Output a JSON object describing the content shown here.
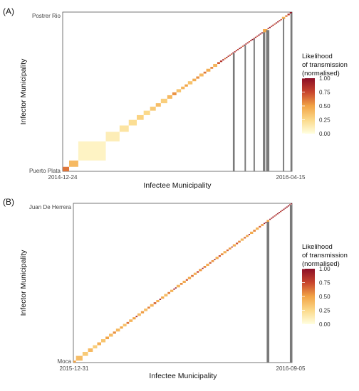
{
  "chart_data": [
    {
      "type": "heatmap",
      "panel_label": "(A)",
      "xlabel": "Infectee Municipality",
      "ylabel": "Infector Municipality",
      "x_start_label": "2014-12-24",
      "x_end_label": "2016-04-15",
      "y_bottom_label": "Puerto Plata",
      "y_top_label": "Postrer Rio",
      "legend_title": [
        "Likelihood",
        "of transmission",
        "(normalised)"
      ],
      "legend_ticks": [
        "1.00",
        "0.75",
        "0.50",
        "0.25",
        "0.00"
      ],
      "value_range": [
        0,
        1
      ],
      "diagonal_cells": [
        {
          "p": 0.0,
          "s": 0.028,
          "v": 0.62
        },
        {
          "p": 0.028,
          "s": 0.04,
          "v": 0.4
        },
        {
          "p": 0.068,
          "s": 0.12,
          "v": 0.08
        },
        {
          "p": 0.188,
          "s": 0.06,
          "v": 0.12
        },
        {
          "p": 0.248,
          "s": 0.04,
          "v": 0.18
        },
        {
          "p": 0.288,
          "s": 0.035,
          "v": 0.22
        },
        {
          "p": 0.323,
          "s": 0.03,
          "v": 0.28
        },
        {
          "p": 0.353,
          "s": 0.028,
          "v": 0.25
        },
        {
          "p": 0.381,
          "s": 0.025,
          "v": 0.32
        },
        {
          "p": 0.406,
          "s": 0.022,
          "v": 0.38
        },
        {
          "p": 0.428,
          "s": 0.028,
          "v": 0.3
        },
        {
          "p": 0.456,
          "s": 0.022,
          "v": 0.4
        },
        {
          "p": 0.478,
          "s": 0.018,
          "v": 0.55
        },
        {
          "p": 0.496,
          "s": 0.02,
          "v": 0.35
        },
        {
          "p": 0.516,
          "s": 0.016,
          "v": 0.42
        },
        {
          "p": 0.532,
          "s": 0.014,
          "v": 0.5
        },
        {
          "p": 0.546,
          "s": 0.02,
          "v": 0.36
        },
        {
          "p": 0.566,
          "s": 0.016,
          "v": 0.46
        },
        {
          "p": 0.582,
          "s": 0.014,
          "v": 0.55
        },
        {
          "p": 0.596,
          "s": 0.018,
          "v": 0.4
        },
        {
          "p": 0.614,
          "s": 0.012,
          "v": 0.62
        },
        {
          "p": 0.626,
          "s": 0.018,
          "v": 0.45
        },
        {
          "p": 0.644,
          "s": 0.012,
          "v": 0.58
        },
        {
          "p": 0.656,
          "s": 0.018,
          "v": 0.42
        },
        {
          "p": 0.674,
          "s": 0.012,
          "v": 0.7
        },
        {
          "p": 0.686,
          "s": 0.01,
          "v": 0.82
        },
        {
          "p": 0.696,
          "s": 0.008,
          "v": 0.92
        },
        {
          "p": 0.704,
          "s": 0.008,
          "v": 0.65
        },
        {
          "p": 0.712,
          "s": 0.007,
          "v": 0.95
        },
        {
          "p": 0.719,
          "s": 0.007,
          "v": 0.8
        },
        {
          "p": 0.726,
          "s": 0.007,
          "v": 0.9
        },
        {
          "p": 0.733,
          "s": 0.007,
          "v": 0.72
        },
        {
          "p": 0.74,
          "s": 0.007,
          "v": 0.98
        },
        {
          "p": 0.747,
          "s": 0.007,
          "v": 0.85
        },
        {
          "p": 0.754,
          "s": 0.007,
          "v": 0.93
        },
        {
          "p": 0.761,
          "s": 0.007,
          "v": 0.78
        },
        {
          "p": 0.768,
          "s": 0.007,
          "v": 0.96
        },
        {
          "p": 0.775,
          "s": 0.007,
          "v": 0.88
        },
        {
          "p": 0.782,
          "s": 0.007,
          "v": 0.7
        },
        {
          "p": 0.789,
          "s": 0.007,
          "v": 0.99
        },
        {
          "p": 0.796,
          "s": 0.007,
          "v": 0.82
        },
        {
          "p": 0.803,
          "s": 0.007,
          "v": 0.94
        },
        {
          "p": 0.81,
          "s": 0.007,
          "v": 0.76
        },
        {
          "p": 0.817,
          "s": 0.007,
          "v": 0.9
        },
        {
          "p": 0.824,
          "s": 0.007,
          "v": 0.97
        },
        {
          "p": 0.831,
          "s": 0.007,
          "v": 0.84
        },
        {
          "p": 0.838,
          "s": 0.007,
          "v": 0.92
        },
        {
          "p": 0.845,
          "s": 0.007,
          "v": 0.75
        },
        {
          "p": 0.852,
          "s": 0.007,
          "v": 0.99
        },
        {
          "p": 0.859,
          "s": 0.007,
          "v": 0.86
        },
        {
          "p": 0.866,
          "s": 0.007,
          "v": 0.95
        },
        {
          "p": 0.873,
          "s": 0.02,
          "v": 0.48
        },
        {
          "p": 0.893,
          "s": 0.007,
          "v": 0.88
        },
        {
          "p": 0.9,
          "s": 0.007,
          "v": 0.97
        },
        {
          "p": 0.907,
          "s": 0.007,
          "v": 0.8
        },
        {
          "p": 0.914,
          "s": 0.007,
          "v": 0.93
        },
        {
          "p": 0.921,
          "s": 0.007,
          "v": 0.7
        },
        {
          "p": 0.928,
          "s": 0.007,
          "v": 0.99
        },
        {
          "p": 0.935,
          "s": 0.007,
          "v": 0.85
        },
        {
          "p": 0.942,
          "s": 0.007,
          "v": 0.92
        },
        {
          "p": 0.949,
          "s": 0.007,
          "v": 0.76
        },
        {
          "p": 0.956,
          "s": 0.014,
          "v": 0.45
        },
        {
          "p": 0.97,
          "s": 0.01,
          "v": 0.6
        },
        {
          "p": 0.98,
          "s": 0.01,
          "v": 0.82
        },
        {
          "p": 0.99,
          "s": 0.01,
          "v": 0.95
        }
      ],
      "grey_columns": [
        {
          "x": 0.742,
          "w": 0.008
        },
        {
          "x": 0.793,
          "w": 0.006
        },
        {
          "x": 0.832,
          "w": 0.006
        },
        {
          "x": 0.873,
          "w": 0.01
        },
        {
          "x": 0.887,
          "w": 0.014
        },
        {
          "x": 0.96,
          "w": 0.006
        },
        {
          "x": 0.993,
          "w": 0.007
        }
      ]
    },
    {
      "type": "heatmap",
      "panel_label": "(B)",
      "xlabel": "Infectee Municipality",
      "ylabel": "Infector Municipality",
      "x_start_label": "2015-12-31",
      "x_end_label": "2016-09-05",
      "y_bottom_label": "Moca",
      "y_top_label": "Juan De Herrera",
      "legend_title": [
        "Likelihood",
        "of transmission",
        "(normalised)"
      ],
      "legend_ticks": [
        "1.00",
        "0.75",
        "0.50",
        "0.25",
        "0.00"
      ],
      "value_range": [
        0,
        1
      ],
      "diagonal_cells": [
        {
          "p": 0.0,
          "s": 0.012,
          "v": 0.5
        },
        {
          "p": 0.012,
          "s": 0.03,
          "v": 0.38
        },
        {
          "p": 0.042,
          "s": 0.025,
          "v": 0.32
        },
        {
          "p": 0.067,
          "s": 0.022,
          "v": 0.4
        },
        {
          "p": 0.089,
          "s": 0.02,
          "v": 0.3
        },
        {
          "p": 0.109,
          "s": 0.018,
          "v": 0.45
        },
        {
          "p": 0.127,
          "s": 0.02,
          "v": 0.35
        },
        {
          "p": 0.147,
          "s": 0.016,
          "v": 0.5
        },
        {
          "p": 0.163,
          "s": 0.018,
          "v": 0.38
        },
        {
          "p": 0.181,
          "s": 0.014,
          "v": 0.55
        },
        {
          "p": 0.195,
          "s": 0.018,
          "v": 0.4
        },
        {
          "p": 0.213,
          "s": 0.014,
          "v": 0.48
        },
        {
          "p": 0.227,
          "s": 0.016,
          "v": 0.36
        },
        {
          "p": 0.243,
          "s": 0.012,
          "v": 0.62
        },
        {
          "p": 0.255,
          "s": 0.016,
          "v": 0.42
        },
        {
          "p": 0.271,
          "s": 0.014,
          "v": 0.5
        },
        {
          "p": 0.285,
          "s": 0.008,
          "v": 0.88
        },
        {
          "p": 0.293,
          "s": 0.016,
          "v": 0.4
        },
        {
          "p": 0.309,
          "s": 0.014,
          "v": 0.52
        },
        {
          "p": 0.323,
          "s": 0.016,
          "v": 0.38
        },
        {
          "p": 0.339,
          "s": 0.012,
          "v": 0.58
        },
        {
          "p": 0.351,
          "s": 0.016,
          "v": 0.42
        },
        {
          "p": 0.367,
          "s": 0.012,
          "v": 0.66
        },
        {
          "p": 0.379,
          "s": 0.014,
          "v": 0.45
        },
        {
          "p": 0.393,
          "s": 0.008,
          "v": 0.9
        },
        {
          "p": 0.401,
          "s": 0.014,
          "v": 0.48
        },
        {
          "p": 0.415,
          "s": 0.016,
          "v": 0.38
        },
        {
          "p": 0.431,
          "s": 0.012,
          "v": 0.6
        },
        {
          "p": 0.443,
          "s": 0.014,
          "v": 0.44
        },
        {
          "p": 0.457,
          "s": 0.008,
          "v": 0.85
        },
        {
          "p": 0.465,
          "s": 0.007,
          "v": 0.95
        },
        {
          "p": 0.472,
          "s": 0.016,
          "v": 0.42
        },
        {
          "p": 0.488,
          "s": 0.012,
          "v": 0.56
        },
        {
          "p": 0.5,
          "s": 0.014,
          "v": 0.46
        },
        {
          "p": 0.514,
          "s": 0.01,
          "v": 0.7
        },
        {
          "p": 0.524,
          "s": 0.014,
          "v": 0.5
        },
        {
          "p": 0.538,
          "s": 0.012,
          "v": 0.62
        },
        {
          "p": 0.55,
          "s": 0.014,
          "v": 0.44
        },
        {
          "p": 0.564,
          "s": 0.01,
          "v": 0.75
        },
        {
          "p": 0.574,
          "s": 0.014,
          "v": 0.52
        },
        {
          "p": 0.588,
          "s": 0.007,
          "v": 0.92
        },
        {
          "p": 0.595,
          "s": 0.012,
          "v": 0.58
        },
        {
          "p": 0.607,
          "s": 0.014,
          "v": 0.46
        },
        {
          "p": 0.621,
          "s": 0.01,
          "v": 0.68
        },
        {
          "p": 0.631,
          "s": 0.012,
          "v": 0.54
        },
        {
          "p": 0.643,
          "s": 0.007,
          "v": 0.96
        },
        {
          "p": 0.65,
          "s": 0.014,
          "v": 0.48
        },
        {
          "p": 0.664,
          "s": 0.01,
          "v": 0.72
        },
        {
          "p": 0.674,
          "s": 0.012,
          "v": 0.56
        },
        {
          "p": 0.686,
          "s": 0.014,
          "v": 0.44
        },
        {
          "p": 0.7,
          "s": 0.01,
          "v": 0.66
        },
        {
          "p": 0.71,
          "s": 0.012,
          "v": 0.52
        },
        {
          "p": 0.722,
          "s": 0.007,
          "v": 0.9
        },
        {
          "p": 0.729,
          "s": 0.014,
          "v": 0.46
        },
        {
          "p": 0.743,
          "s": 0.01,
          "v": 0.7
        },
        {
          "p": 0.753,
          "s": 0.012,
          "v": 0.56
        },
        {
          "p": 0.765,
          "s": 0.014,
          "v": 0.42
        },
        {
          "p": 0.779,
          "s": 0.01,
          "v": 0.64
        },
        {
          "p": 0.789,
          "s": 0.012,
          "v": 0.5
        },
        {
          "p": 0.801,
          "s": 0.007,
          "v": 0.92
        },
        {
          "p": 0.808,
          "s": 0.014,
          "v": 0.46
        },
        {
          "p": 0.822,
          "s": 0.012,
          "v": 0.58
        },
        {
          "p": 0.834,
          "s": 0.014,
          "v": 0.44
        },
        {
          "p": 0.848,
          "s": 0.01,
          "v": 0.68
        },
        {
          "p": 0.858,
          "s": 0.012,
          "v": 0.52
        },
        {
          "p": 0.87,
          "s": 0.007,
          "v": 0.96
        },
        {
          "p": 0.877,
          "s": 0.007,
          "v": 0.82
        },
        {
          "p": 0.884,
          "s": 0.012,
          "v": 0.5
        },
        {
          "p": 0.896,
          "s": 0.007,
          "v": 0.92
        },
        {
          "p": 0.903,
          "s": 0.007,
          "v": 0.85
        },
        {
          "p": 0.91,
          "s": 0.007,
          "v": 0.98
        },
        {
          "p": 0.917,
          "s": 0.007,
          "v": 0.76
        },
        {
          "p": 0.924,
          "s": 0.007,
          "v": 0.94
        },
        {
          "p": 0.931,
          "s": 0.007,
          "v": 0.88
        },
        {
          "p": 0.938,
          "s": 0.007,
          "v": 0.99
        },
        {
          "p": 0.945,
          "s": 0.007,
          "v": 0.8
        },
        {
          "p": 0.952,
          "s": 0.007,
          "v": 0.93
        },
        {
          "p": 0.959,
          "s": 0.007,
          "v": 0.86
        },
        {
          "p": 0.966,
          "s": 0.007,
          "v": 0.97
        },
        {
          "p": 0.973,
          "s": 0.007,
          "v": 0.9
        },
        {
          "p": 0.98,
          "s": 0.007,
          "v": 0.99
        },
        {
          "p": 0.987,
          "s": 0.007,
          "v": 0.84
        },
        {
          "p": 0.994,
          "s": 0.006,
          "v": 0.95
        }
      ],
      "grey_columns": [
        {
          "x": 0.884,
          "w": 0.012
        },
        {
          "x": 0.99,
          "w": 0.01
        }
      ]
    }
  ]
}
